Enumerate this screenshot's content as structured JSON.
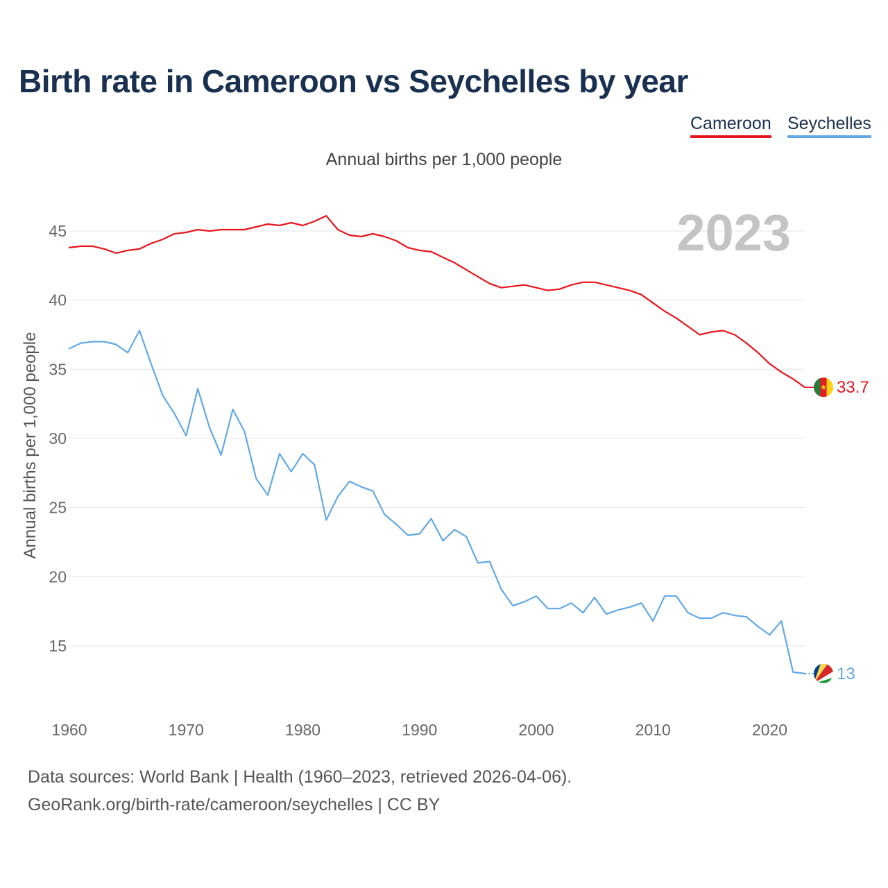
{
  "title": "Birth rate in Cameroon vs Seychelles by year",
  "legend": {
    "cameroon": "Cameroon",
    "seychelles": "Seychelles"
  },
  "subtitle": "Annual births per 1,000 people",
  "year_watermark": "2023",
  "footer": {
    "line1": "Data sources: World Bank | Health (1960–2023, retrieved 2026-04-06).",
    "line2": "GeoRank.org/birth-rate/cameroon/seychelles | CC BY"
  },
  "colors": {
    "cameroon": "#e8141c",
    "seychelles": "#62a8e5",
    "title": "#1a3050",
    "grid": "#e6e6e6",
    "tick": "#666666",
    "watermark": "#c4c4c4"
  },
  "chart_data": {
    "type": "line",
    "title": "Birth rate in Cameroon vs Seychelles by year",
    "subtitle": "Annual births per 1,000 people",
    "xlabel": "",
    "ylabel": "Annual births per 1,000 people",
    "xlim": [
      1960,
      2023
    ],
    "ylim": [
      11,
      47
    ],
    "x_ticks": [
      1960,
      1970,
      1980,
      1990,
      2000,
      2010,
      2020
    ],
    "y_ticks": [
      15,
      20,
      25,
      30,
      35,
      40,
      45
    ],
    "grid": true,
    "legend_position": "top-right",
    "x": [
      1960,
      1961,
      1962,
      1963,
      1964,
      1965,
      1966,
      1967,
      1968,
      1969,
      1970,
      1971,
      1972,
      1973,
      1974,
      1975,
      1976,
      1977,
      1978,
      1979,
      1980,
      1981,
      1982,
      1983,
      1984,
      1985,
      1986,
      1987,
      1988,
      1989,
      1990,
      1991,
      1992,
      1993,
      1994,
      1995,
      1996,
      1997,
      1998,
      1999,
      2000,
      2001,
      2002,
      2003,
      2004,
      2005,
      2006,
      2007,
      2008,
      2009,
      2010,
      2011,
      2012,
      2013,
      2014,
      2015,
      2016,
      2017,
      2018,
      2019,
      2020,
      2021,
      2022,
      2023
    ],
    "series": [
      {
        "name": "Cameroon",
        "end_label": "33.7",
        "values": [
          43.8,
          43.9,
          43.9,
          43.7,
          43.4,
          43.6,
          43.7,
          44.1,
          44.4,
          44.8,
          44.9,
          45.1,
          45.0,
          45.1,
          45.1,
          45.1,
          45.3,
          45.5,
          45.4,
          45.6,
          45.4,
          45.7,
          46.1,
          45.1,
          44.7,
          44.6,
          44.8,
          44.6,
          44.3,
          43.8,
          43.6,
          43.5,
          43.1,
          42.7,
          42.2,
          41.7,
          41.2,
          40.9,
          41.0,
          41.1,
          40.9,
          40.7,
          40.8,
          41.1,
          41.3,
          41.3,
          41.1,
          40.9,
          40.7,
          40.4,
          39.8,
          39.2,
          38.7,
          38.1,
          37.5,
          37.7,
          37.8,
          37.5,
          36.9,
          36.2,
          35.4,
          34.8,
          34.3,
          33.7
        ]
      },
      {
        "name": "Seychelles",
        "end_label": "13",
        "values": [
          36.5,
          36.9,
          37.0,
          37.0,
          36.8,
          36.2,
          37.8,
          35.4,
          33.1,
          31.8,
          30.2,
          33.6,
          30.8,
          28.8,
          32.1,
          30.5,
          27.1,
          25.9,
          28.9,
          27.6,
          28.9,
          28.1,
          24.1,
          25.8,
          26.9,
          26.5,
          26.2,
          24.5,
          23.8,
          23.0,
          23.1,
          24.2,
          22.6,
          23.4,
          22.9,
          21.0,
          21.1,
          19.1,
          17.9,
          18.2,
          18.6,
          17.7,
          17.7,
          18.1,
          17.4,
          18.5,
          17.3,
          17.6,
          17.8,
          18.1,
          16.8,
          18.6,
          18.6,
          17.4,
          17.0,
          17.0,
          17.4,
          17.2,
          17.1,
          16.4,
          15.8,
          16.8,
          13.1,
          13.0
        ]
      }
    ]
  }
}
